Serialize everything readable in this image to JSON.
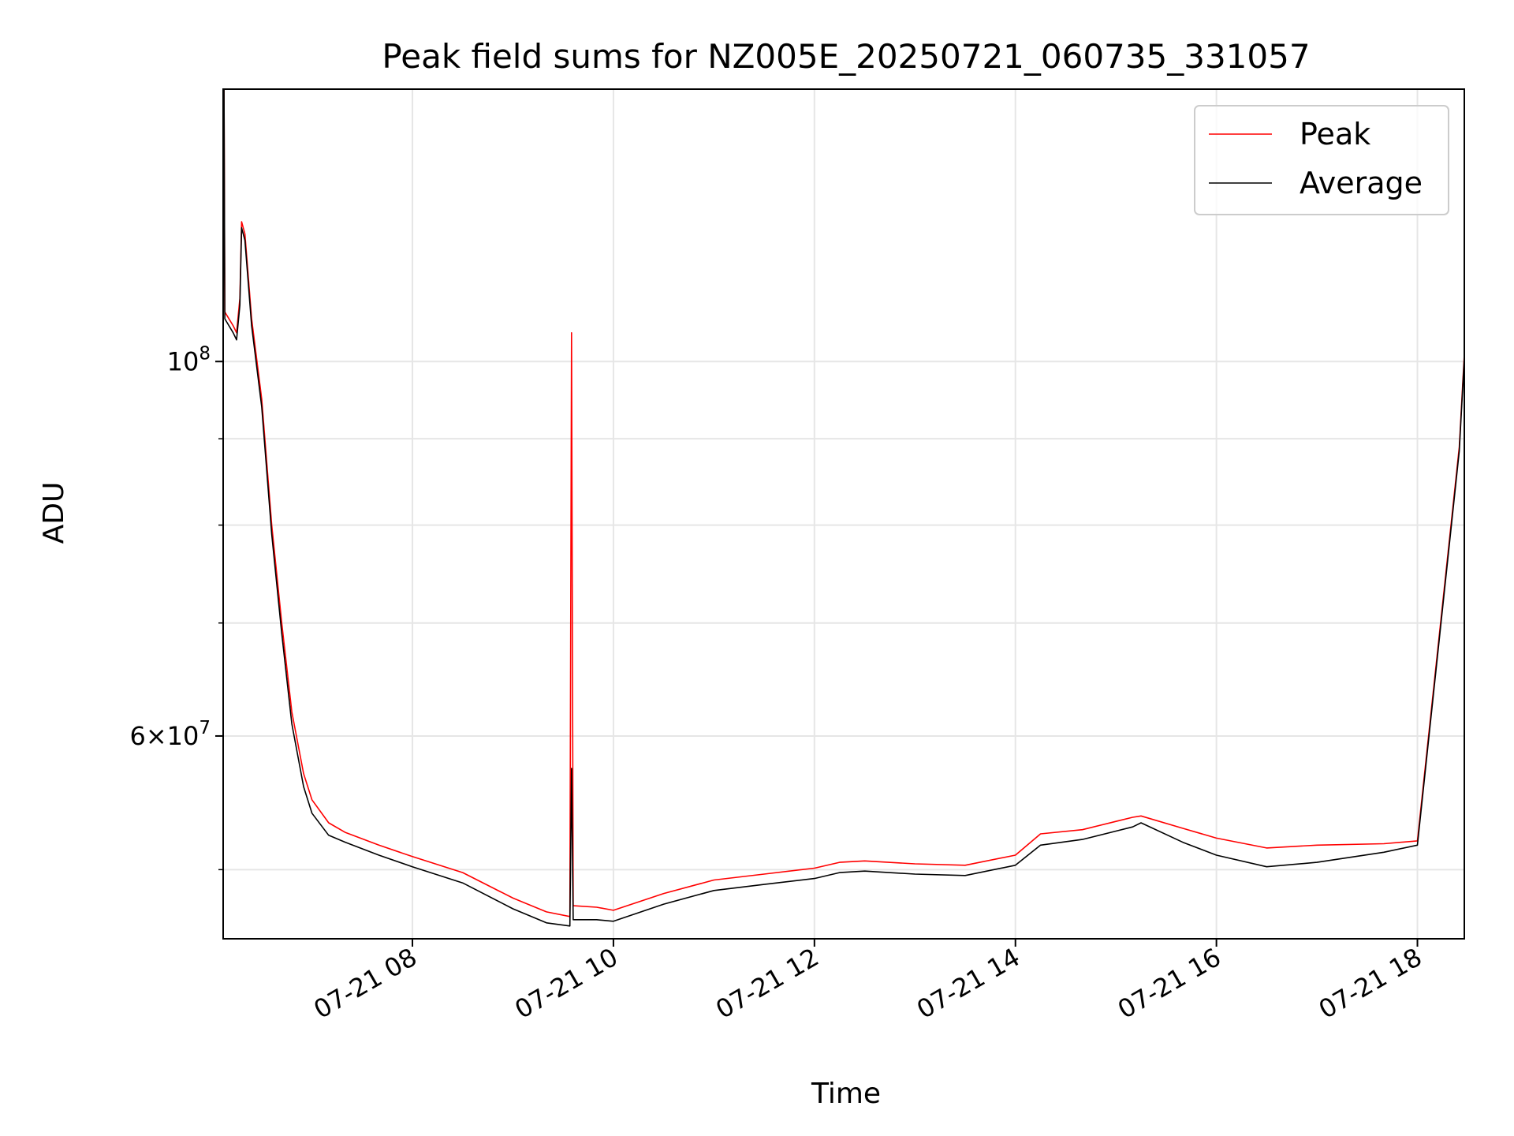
{
  "chart_data": {
    "type": "line",
    "title": "Peak field sums for NZ005E_20250721_060735_331057",
    "xlabel": "Time",
    "ylabel": "ADU",
    "y_scale": "log",
    "ylim": [
      45500000,
      145000000
    ],
    "xlim": [
      "2025-07-21 06:07",
      "2025-07-21 18:28"
    ],
    "x_ticks": [
      "2025-07-21 08:00",
      "2025-07-21 10:00",
      "2025-07-21 12:00",
      "2025-07-21 14:00",
      "2025-07-21 16:00",
      "2025-07-21 18:00"
    ],
    "x_tick_labels": [
      "07-21 08",
      "07-21 10",
      "07-21 12",
      "07-21 14",
      "07-21 16",
      "07-21 18"
    ],
    "y_major_ticks": [
      100000000,
      60000000
    ],
    "y_tick_labels": [
      {
        "value": 100000000,
        "mantissa": "",
        "exponent": "8"
      },
      {
        "value": 60000000,
        "mantissa": "6",
        "exponent": "7"
      }
    ],
    "y_minor_ticks": [
      50000000,
      70000000,
      80000000,
      90000000
    ],
    "grid": true,
    "legend": {
      "placement": "top-right",
      "entries": [
        "Peak",
        "Average"
      ]
    },
    "series": [
      {
        "name": "Peak",
        "color": "#ff0000",
        "points": [
          [
            "2025-07-21 06:07",
            103000000
          ],
          [
            "2025-07-21 06:07:30",
            145000000
          ],
          [
            "2025-07-21 06:08",
            107000000
          ],
          [
            "2025-07-21 06:13",
            105000000
          ],
          [
            "2025-07-21 06:15",
            104000000
          ],
          [
            "2025-07-21 06:17",
            109000000
          ],
          [
            "2025-07-21 06:18",
            121000000
          ],
          [
            "2025-07-21 06:20",
            119000000
          ],
          [
            "2025-07-21 06:24",
            106000000
          ],
          [
            "2025-07-21 06:30",
            95000000
          ],
          [
            "2025-07-21 06:36",
            80000000
          ],
          [
            "2025-07-21 06:42",
            70000000
          ],
          [
            "2025-07-21 06:48",
            62000000
          ],
          [
            "2025-07-21 06:55",
            57000000
          ],
          [
            "2025-07-21 07:00",
            55000000
          ],
          [
            "2025-07-21 07:10",
            53300000
          ],
          [
            "2025-07-21 07:20",
            52600000
          ],
          [
            "2025-07-21 07:40",
            51700000
          ],
          [
            "2025-07-21 08:00",
            50900000
          ],
          [
            "2025-07-21 08:30",
            49800000
          ],
          [
            "2025-07-21 09:00",
            48100000
          ],
          [
            "2025-07-21 09:20",
            47200000
          ],
          [
            "2025-07-21 09:34",
            46900000
          ],
          [
            "2025-07-21 09:35",
            104000000
          ],
          [
            "2025-07-21 09:36",
            47600000
          ],
          [
            "2025-07-21 09:50",
            47500000
          ],
          [
            "2025-07-21 10:00",
            47300000
          ],
          [
            "2025-07-21 10:30",
            48400000
          ],
          [
            "2025-07-21 11:00",
            49300000
          ],
          [
            "2025-07-21 11:30",
            49700000
          ],
          [
            "2025-07-21 12:00",
            50100000
          ],
          [
            "2025-07-21 12:15",
            50500000
          ],
          [
            "2025-07-21 12:30",
            50600000
          ],
          [
            "2025-07-21 13:00",
            50400000
          ],
          [
            "2025-07-21 13:30",
            50300000
          ],
          [
            "2025-07-21 14:00",
            51000000
          ],
          [
            "2025-07-21 14:15",
            52500000
          ],
          [
            "2025-07-21 14:40",
            52800000
          ],
          [
            "2025-07-21 15:00",
            53400000
          ],
          [
            "2025-07-21 15:10",
            53700000
          ],
          [
            "2025-07-21 15:15",
            53800000
          ],
          [
            "2025-07-21 15:40",
            52900000
          ],
          [
            "2025-07-21 16:00",
            52200000
          ],
          [
            "2025-07-21 16:30",
            51500000
          ],
          [
            "2025-07-21 17:00",
            51700000
          ],
          [
            "2025-07-21 17:40",
            51800000
          ],
          [
            "2025-07-21 18:00",
            52000000
          ],
          [
            "2025-07-21 18:25",
            89000000
          ],
          [
            "2025-07-21 18:28",
            101000000
          ]
        ]
      },
      {
        "name": "Average",
        "color": "#000000",
        "points": [
          [
            "2025-07-21 06:07",
            103000000
          ],
          [
            "2025-07-21 06:07:30",
            145000000
          ],
          [
            "2025-07-21 06:08",
            106000000
          ],
          [
            "2025-07-21 06:13",
            104000000
          ],
          [
            "2025-07-21 06:15",
            103000000
          ],
          [
            "2025-07-21 06:17",
            108000000
          ],
          [
            "2025-07-21 06:18",
            120000000
          ],
          [
            "2025-07-21 06:20",
            118000000
          ],
          [
            "2025-07-21 06:24",
            105000000
          ],
          [
            "2025-07-21 06:30",
            94000000
          ],
          [
            "2025-07-21 06:36",
            79000000
          ],
          [
            "2025-07-21 06:42",
            69000000
          ],
          [
            "2025-07-21 06:48",
            61000000
          ],
          [
            "2025-07-21 06:55",
            56000000
          ],
          [
            "2025-07-21 07:00",
            54000000
          ],
          [
            "2025-07-21 07:10",
            52400000
          ],
          [
            "2025-07-21 07:20",
            51900000
          ],
          [
            "2025-07-21 07:40",
            51000000
          ],
          [
            "2025-07-21 08:00",
            50200000
          ],
          [
            "2025-07-21 08:30",
            49100000
          ],
          [
            "2025-07-21 09:00",
            47400000
          ],
          [
            "2025-07-21 09:20",
            46500000
          ],
          [
            "2025-07-21 09:34",
            46300000
          ],
          [
            "2025-07-21 09:35",
            57400000
          ],
          [
            "2025-07-21 09:36",
            46700000
          ],
          [
            "2025-07-21 09:50",
            46700000
          ],
          [
            "2025-07-21 10:00",
            46600000
          ],
          [
            "2025-07-21 10:30",
            47700000
          ],
          [
            "2025-07-21 11:00",
            48600000
          ],
          [
            "2025-07-21 11:30",
            49000000
          ],
          [
            "2025-07-21 12:00",
            49400000
          ],
          [
            "2025-07-21 12:15",
            49800000
          ],
          [
            "2025-07-21 12:30",
            49900000
          ],
          [
            "2025-07-21 13:00",
            49700000
          ],
          [
            "2025-07-21 13:30",
            49600000
          ],
          [
            "2025-07-21 14:00",
            50300000
          ],
          [
            "2025-07-21 14:15",
            51700000
          ],
          [
            "2025-07-21 14:40",
            52100000
          ],
          [
            "2025-07-21 15:00",
            52700000
          ],
          [
            "2025-07-21 15:10",
            53000000
          ],
          [
            "2025-07-21 15:15",
            53300000
          ],
          [
            "2025-07-21 15:40",
            51900000
          ],
          [
            "2025-07-21 16:00",
            51000000
          ],
          [
            "2025-07-21 16:30",
            50200000
          ],
          [
            "2025-07-21 17:00",
            50500000
          ],
          [
            "2025-07-21 17:40",
            51200000
          ],
          [
            "2025-07-21 18:00",
            51700000
          ],
          [
            "2025-07-21 18:25",
            88500000
          ],
          [
            "2025-07-21 18:28",
            100500000
          ]
        ]
      }
    ]
  }
}
